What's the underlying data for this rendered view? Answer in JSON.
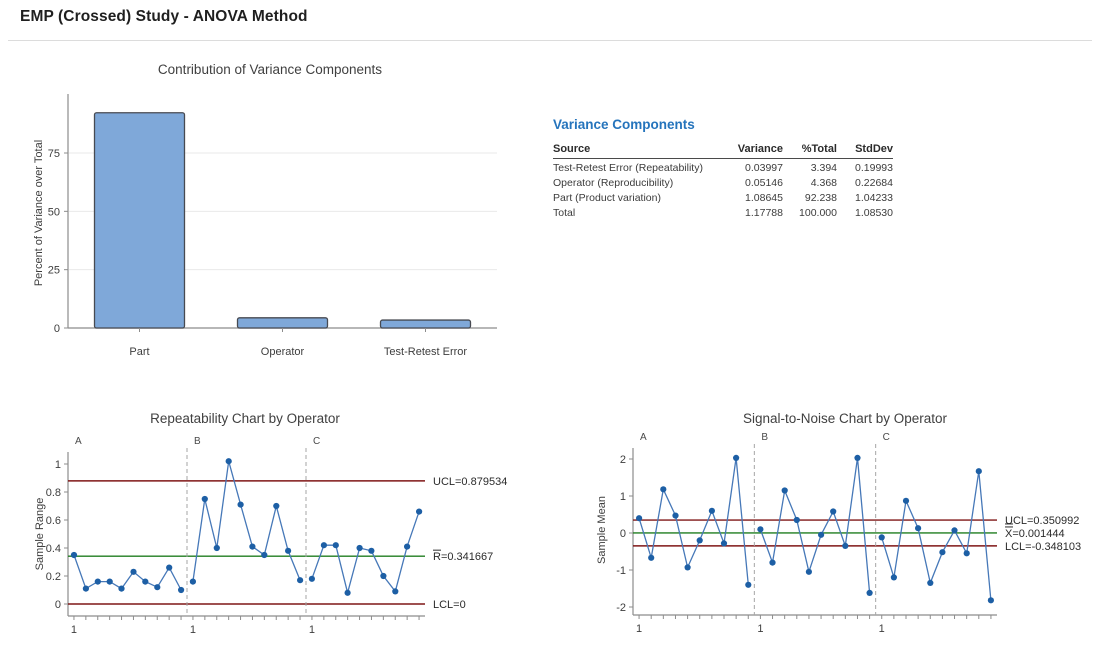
{
  "page": {
    "title": "EMP (Crossed) Study - ANOVA Method"
  },
  "colors": {
    "heading_blue": "#2574bc",
    "bar_fill": "#7fa8d9",
    "bar_stroke": "#474a52",
    "line_blue": "#4678b8",
    "point_blue": "#1d5fa5",
    "control_red": "#7f1616",
    "center_green": "#1f7d1f",
    "separator_gray": "#a6a6a6",
    "axis_gray": "#8c8c8c",
    "grid_gray": "#e9e9e9",
    "text_dark": "#2b2b2b",
    "divider_gray": "#dcdcdc"
  },
  "chart_data": [
    {
      "type": "bar",
      "title": "Contribution of Variance Components",
      "xlabel": "",
      "ylabel": "Percent of Variance over Total",
      "categories": [
        "Part",
        "Operator",
        "Test-Retest Error"
      ],
      "values": [
        92.238,
        4.368,
        3.394
      ],
      "ylim": [
        0,
        100
      ],
      "yticks": [
        0,
        25,
        50,
        75
      ],
      "grid": true,
      "legend": "none"
    },
    {
      "type": "table",
      "heading": "Variance Components",
      "columns": [
        "Source",
        "Variance",
        "%Total",
        "StdDev"
      ],
      "rows": [
        [
          "Test-Retest Error (Repeatability)",
          "0.03997",
          "3.394",
          "0.19993"
        ],
        [
          "Operator (Reproducibility)",
          "0.05146",
          "4.368",
          "0.22684"
        ],
        [
          "Part (Product variation)",
          "1.08645",
          "92.238",
          "1.04233"
        ],
        [
          "Total",
          "1.17788",
          "100.000",
          "1.08530"
        ]
      ]
    },
    {
      "type": "line",
      "title": "Repeatability Chart by Operator",
      "ylabel": "Sample Range",
      "x_first_tick_label": "1",
      "ylim": [
        -0.07,
        1.07
      ],
      "yticks": [
        0,
        0.2,
        0.4,
        0.6,
        0.8,
        1
      ],
      "grid": false,
      "series": [
        {
          "name": "A",
          "values": [
            0.35,
            0.11,
            0.16,
            0.16,
            0.11,
            0.23,
            0.16,
            0.12,
            0.26,
            0.1
          ]
        },
        {
          "name": "B",
          "values": [
            0.16,
            0.75,
            0.4,
            1.02,
            0.71,
            0.41,
            0.35,
            0.7,
            0.38,
            0.17
          ]
        },
        {
          "name": "C",
          "values": [
            0.18,
            0.42,
            0.42,
            0.08,
            0.4,
            0.38,
            0.2,
            0.09,
            0.41,
            0.66
          ]
        }
      ],
      "lines": [
        {
          "label": "UCL=0.879534",
          "value": 0.879534,
          "color_key": "control_red",
          "overline": 0
        },
        {
          "label": "R=0.341667",
          "value": 0.341667,
          "color_key": "center_green",
          "overline": 1
        },
        {
          "label": "LCL=0",
          "value": 0,
          "color_key": "control_red",
          "overline": 0
        }
      ]
    },
    {
      "type": "line",
      "title": "Signal-to-Noise Chart by Operator",
      "ylabel": "Sample Mean",
      "x_first_tick_label": "1",
      "ylim": [
        -2.2,
        2.2
      ],
      "yticks": [
        -2,
        -1,
        0,
        1,
        2
      ],
      "grid": false,
      "series": [
        {
          "name": "A",
          "values": [
            0.4,
            -0.67,
            1.18,
            0.47,
            -0.93,
            -0.2,
            0.6,
            -0.28,
            2.03,
            -1.4
          ]
        },
        {
          "name": "B",
          "values": [
            0.1,
            -0.8,
            1.15,
            0.35,
            -1.05,
            -0.05,
            0.58,
            -0.35,
            2.03,
            -1.62
          ]
        },
        {
          "name": "C",
          "values": [
            -0.12,
            -1.2,
            0.87,
            0.13,
            -1.35,
            -0.52,
            0.07,
            -0.55,
            1.67,
            -1.82
          ]
        }
      ],
      "lines": [
        {
          "label": "UCL=0.350992",
          "value": 0.350992,
          "color_key": "control_red",
          "overline": 0
        },
        {
          "label": "X=0.001444",
          "value": 0.001444,
          "color_key": "center_green",
          "overline": 2
        },
        {
          "label": "LCL=-0.348103",
          "value": -0.348103,
          "color_key": "control_red",
          "overline": 0
        }
      ]
    }
  ]
}
